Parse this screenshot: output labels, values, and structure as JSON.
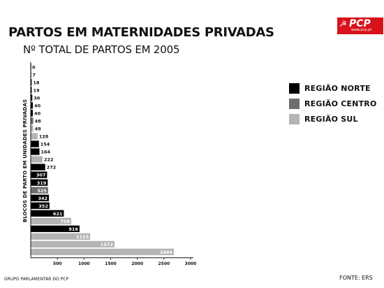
{
  "header": {
    "title": "PARTOS EM MATERNIDADES PRIVADAS",
    "subtitle": "Nº TOTAL DE PARTOS EM 2005"
  },
  "logo": {
    "name": "PCP",
    "url": "www.pcp.pt",
    "color": "#d8121b",
    "icon": "hammer-sickle-icon"
  },
  "footer": {
    "left": "GRUPO PARLAMENTAR DO PCP",
    "right": "FONTE: ERS"
  },
  "chart_data": {
    "type": "bar",
    "orientation": "horizontal",
    "ylabel": "BLOCOS DE PARTO EM UNIDADES PRIVADAS",
    "xlabel": "",
    "xlim": [
      0,
      3000
    ],
    "xticks": [
      500,
      1000,
      1500,
      2000,
      2500,
      3000
    ],
    "grid": false,
    "legend_position": "right",
    "series": [
      {
        "name": "REGIÃO NORTE",
        "color": "#000000"
      },
      {
        "name": "REGIÃO CENTRO",
        "color": "#6e6e6e"
      },
      {
        "name": "REGIÃO SUL",
        "color": "#b4b4b4"
      }
    ],
    "bars": [
      {
        "value": 0,
        "label": "0",
        "series": "REGIÃO NORTE"
      },
      {
        "value": 7,
        "label": "7",
        "series": "REGIÃO NORTE"
      },
      {
        "value": 18,
        "label": "18",
        "series": "REGIÃO NORTE"
      },
      {
        "value": 19,
        "label": "19",
        "series": "REGIÃO NORTE"
      },
      {
        "value": 30,
        "label": "30",
        "series": "REGIÃO NORTE"
      },
      {
        "value": 40,
        "label": "40",
        "series": "REGIÃO NORTE"
      },
      {
        "value": 40,
        "label": "40",
        "series": "REGIÃO NORTE"
      },
      {
        "value": 48,
        "label": "48",
        "series": "REGIÃO CENTRO"
      },
      {
        "value": 48,
        "label": "48",
        "series": "REGIÃO SUL"
      },
      {
        "value": 128,
        "label": "128",
        "series": "REGIÃO SUL"
      },
      {
        "value": 154,
        "label": "154",
        "series": "REGIÃO NORTE"
      },
      {
        "value": 164,
        "label": "164",
        "series": "REGIÃO NORTE"
      },
      {
        "value": 222,
        "label": "222",
        "series": "REGIÃO SUL"
      },
      {
        "value": 272,
        "label": "272",
        "series": "REGIÃO NORTE"
      },
      {
        "value": 307,
        "label": "307",
        "series": "REGIÃO NORTE"
      },
      {
        "value": 319,
        "label": "319",
        "series": "REGIÃO NORTE"
      },
      {
        "value": 325,
        "label": "325",
        "series": "REGIÃO CENTRO"
      },
      {
        "value": 342,
        "label": "342",
        "series": "REGIÃO NORTE"
      },
      {
        "value": 352,
        "label": "352",
        "series": "REGIÃO NORTE"
      },
      {
        "value": 621,
        "label": "621",
        "series": "REGIÃO NORTE"
      },
      {
        "value": 758,
        "label": "758",
        "series": "REGIÃO SUL"
      },
      {
        "value": 916,
        "label": "916",
        "series": "REGIÃO NORTE"
      },
      {
        "value": 1115,
        "label": "1115",
        "series": "REGIÃO SUL"
      },
      {
        "value": 1572,
        "label": "1572",
        "series": "REGIÃO SUL"
      },
      {
        "value": 2686,
        "label": "2686",
        "series": "REGIÃO SUL"
      }
    ]
  }
}
